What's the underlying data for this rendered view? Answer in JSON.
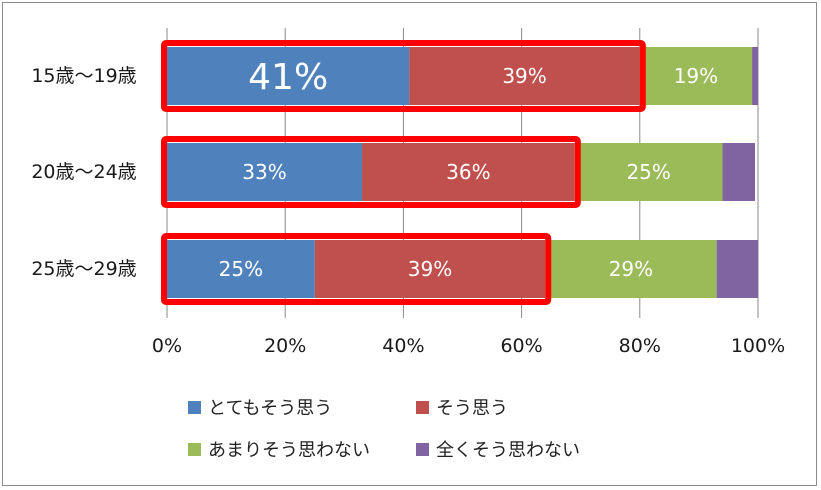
{
  "chart_data": {
    "type": "bar",
    "orientation": "horizontal",
    "stacked": "percent",
    "categories": [
      "15歳〜19歳",
      "20歳〜24歳",
      "25歳〜29歳"
    ],
    "series": [
      {
        "name": "とてもそう思う",
        "color": "#4f81bd",
        "values": [
          41,
          33,
          25
        ],
        "labels": [
          "41%",
          "33%",
          "25%"
        ]
      },
      {
        "name": "そう思う",
        "color": "#c0504d",
        "values": [
          39,
          36,
          39
        ],
        "labels": [
          "39%",
          "36%",
          "39%"
        ]
      },
      {
        "name": "あまりそう思わない",
        "color": "#9bbb59",
        "values": [
          19,
          25,
          29
        ],
        "labels": [
          "19%",
          "25%",
          "29%"
        ]
      },
      {
        "name": "全くそう思わない",
        "color": "#8064a2",
        "values": [
          1,
          5.5,
          7
        ],
        "labels": [
          "",
          "",
          ""
        ]
      }
    ],
    "x_ticks": [
      "0%",
      "20%",
      "40%",
      "60%",
      "80%",
      "100%"
    ],
    "xlim": [
      0,
      100
    ],
    "grid": "vertical",
    "legend_position": "bottom",
    "highlight_color": "#ff0000"
  }
}
